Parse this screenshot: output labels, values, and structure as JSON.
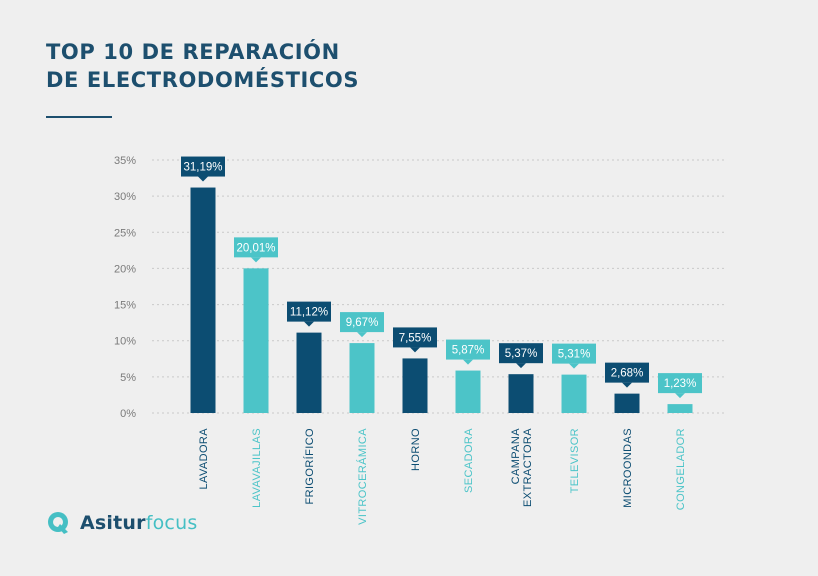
{
  "header": {
    "title_line1": "TOP 10 DE REPARACIÓN",
    "title_line2": "DE ELECTRODOMÉSTICOS"
  },
  "brand": {
    "name_part1": "Asitur",
    "name_part2": "focus"
  },
  "colors": {
    "dark": "#0c4d72",
    "light": "#4cc4c8",
    "title": "#1d4f6e",
    "grid": "#c9c9c9",
    "tick": "#7a7a7a"
  },
  "chart_data": {
    "type": "bar",
    "title": "TOP 10 DE REPARACIÓN DE ELECTRODOMÉSTICOS",
    "ylim": [
      0,
      35
    ],
    "yticks": [
      "0%",
      "5%",
      "10%",
      "15%",
      "20%",
      "25%",
      "30%",
      "35%"
    ],
    "ytick_values": [
      0,
      5,
      10,
      15,
      20,
      25,
      30,
      35
    ],
    "grid": true,
    "bars": [
      {
        "category": [
          "LAVADORA"
        ],
        "value": 31.19,
        "label": "31,19%",
        "tone": "dark"
      },
      {
        "category": [
          "LAVAVAJILLAS"
        ],
        "value": 20.01,
        "label": "20,01%",
        "tone": "light"
      },
      {
        "category": [
          "FRIGORÍFICO"
        ],
        "value": 11.12,
        "label": "11,12%",
        "tone": "dark"
      },
      {
        "category": [
          "VITROCERÁMICA"
        ],
        "value": 9.67,
        "label": "9,67%",
        "tone": "light"
      },
      {
        "category": [
          "HORNO"
        ],
        "value": 7.55,
        "label": "7,55%",
        "tone": "dark"
      },
      {
        "category": [
          "SECADORA"
        ],
        "value": 5.87,
        "label": "5,87%",
        "tone": "light"
      },
      {
        "category": [
          "CAMPANA",
          "EXTRACTORA"
        ],
        "value": 5.37,
        "label": "5,37%",
        "tone": "dark"
      },
      {
        "category": [
          "TELEVISOR"
        ],
        "value": 5.31,
        "label": "5,31%",
        "tone": "light"
      },
      {
        "category": [
          "MICROONDAS"
        ],
        "value": 2.68,
        "label": "2,68%",
        "tone": "dark"
      },
      {
        "category": [
          "CONGELADOR"
        ],
        "value": 1.23,
        "label": "1,23%",
        "tone": "light"
      }
    ]
  }
}
